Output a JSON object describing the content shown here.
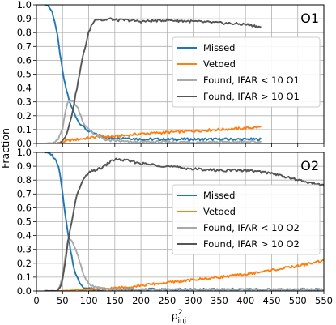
{
  "chart_data": [
    {
      "type": "line",
      "panel_label": "O1",
      "ylabel": "Fraction",
      "xlim": [
        0,
        550
      ],
      "ylim": [
        0,
        1.0
      ],
      "grid": true,
      "legend_position": "right",
      "x_ticks": [
        0,
        50,
        100,
        150,
        200,
        250,
        300,
        350,
        400,
        450,
        500,
        550
      ],
      "y_ticks": [
        0.0,
        0.1,
        0.2,
        0.3,
        0.4,
        0.5,
        0.6,
        0.7,
        0.8,
        0.9,
        1.0
      ],
      "series": [
        {
          "name": "Missed",
          "color": "#1f77b4",
          "x": [
            15,
            20,
            25,
            30,
            35,
            40,
            45,
            50,
            55,
            60,
            65,
            70,
            75,
            80,
            85,
            90,
            95,
            100,
            110,
            120,
            130,
            140,
            150,
            175,
            200,
            250,
            300,
            350,
            400,
            430
          ],
          "y": [
            1.0,
            1.0,
            0.98,
            0.95,
            0.88,
            0.78,
            0.65,
            0.52,
            0.42,
            0.35,
            0.28,
            0.24,
            0.2,
            0.16,
            0.14,
            0.12,
            0.1,
            0.09,
            0.07,
            0.06,
            0.05,
            0.04,
            0.04,
            0.04,
            0.03,
            0.03,
            0.03,
            0.03,
            0.03,
            0.03
          ]
        },
        {
          "name": "Vetoed",
          "color": "#ff7f0e",
          "x": [
            15,
            40,
            60,
            80,
            100,
            120,
            150,
            175,
            200,
            250,
            300,
            350,
            400,
            430
          ],
          "y": [
            0.0,
            0.0,
            0.02,
            0.03,
            0.04,
            0.05,
            0.05,
            0.06,
            0.07,
            0.08,
            0.09,
            0.1,
            0.11,
            0.12
          ]
        },
        {
          "name": "Found, IFAR < 10 O1",
          "color": "#a9a9a9",
          "x": [
            15,
            30,
            40,
            50,
            55,
            60,
            65,
            70,
            75,
            80,
            85,
            90,
            95,
            100,
            110,
            120,
            130,
            140,
            150,
            175,
            200,
            250,
            300,
            350,
            400,
            430
          ],
          "y": [
            0.0,
            0.0,
            0.02,
            0.1,
            0.22,
            0.3,
            0.32,
            0.3,
            0.28,
            0.25,
            0.2,
            0.15,
            0.12,
            0.1,
            0.07,
            0.05,
            0.03,
            0.02,
            0.02,
            0.01,
            0.01,
            0.01,
            0.01,
            0.01,
            0.01,
            0.01
          ]
        },
        {
          "name": "Found, IFAR > 10 O1",
          "color": "#555555",
          "x": [
            15,
            40,
            50,
            55,
            60,
            65,
            70,
            75,
            80,
            85,
            90,
            95,
            100,
            105,
            110,
            115,
            120,
            125,
            130,
            140,
            150,
            175,
            200,
            250,
            300,
            350,
            400,
            430
          ],
          "y": [
            0.0,
            0.0,
            0.02,
            0.05,
            0.1,
            0.16,
            0.25,
            0.35,
            0.45,
            0.55,
            0.65,
            0.72,
            0.8,
            0.85,
            0.88,
            0.9,
            0.9,
            0.89,
            0.89,
            0.9,
            0.89,
            0.89,
            0.88,
            0.89,
            0.88,
            0.87,
            0.86,
            0.84
          ]
        }
      ]
    },
    {
      "type": "line",
      "panel_label": "O2",
      "xlabel": "ρ²_inj",
      "ylabel": "Fraction",
      "xlim": [
        0,
        550
      ],
      "ylim": [
        0,
        1.0
      ],
      "grid": true,
      "legend_position": "right",
      "x_ticks": [
        0,
        50,
        100,
        150,
        200,
        250,
        300,
        350,
        400,
        450,
        500,
        550
      ],
      "y_ticks": [
        0.0,
        0.1,
        0.2,
        0.3,
        0.4,
        0.5,
        0.6,
        0.7,
        0.8,
        0.9,
        1.0
      ],
      "series": [
        {
          "name": "Missed",
          "color": "#1f77b4",
          "x": [
            15,
            20,
            25,
            30,
            35,
            40,
            45,
            50,
            55,
            60,
            65,
            70,
            75,
            80,
            85,
            90,
            95,
            100,
            110,
            120,
            150,
            200,
            300,
            400,
            500,
            550
          ],
          "y": [
            1.0,
            1.0,
            0.99,
            0.98,
            0.95,
            0.92,
            0.85,
            0.7,
            0.55,
            0.42,
            0.3,
            0.2,
            0.12,
            0.08,
            0.05,
            0.03,
            0.02,
            0.02,
            0.01,
            0.01,
            0.01,
            0.01,
            0.01,
            0.01,
            0.01,
            0.01
          ]
        },
        {
          "name": "Vetoed",
          "color": "#ff7f0e",
          "x": [
            15,
            50,
            100,
            150,
            200,
            250,
            300,
            350,
            400,
            450,
            500,
            550
          ],
          "y": [
            0.0,
            0.0,
            0.01,
            0.02,
            0.04,
            0.06,
            0.08,
            0.1,
            0.12,
            0.15,
            0.18,
            0.22
          ]
        },
        {
          "name": "Found, IFAR < 10 O2",
          "color": "#a9a9a9",
          "x": [
            15,
            40,
            45,
            50,
            55,
            60,
            65,
            70,
            75,
            80,
            85,
            90,
            95,
            100,
            110,
            120,
            130,
            150,
            200,
            300,
            400,
            500,
            550
          ],
          "y": [
            0.0,
            0.0,
            0.03,
            0.1,
            0.25,
            0.36,
            0.38,
            0.34,
            0.3,
            0.25,
            0.18,
            0.12,
            0.08,
            0.05,
            0.03,
            0.02,
            0.01,
            0.01,
            0.01,
            0.01,
            0.01,
            0.01,
            0.01
          ]
        },
        {
          "name": "Found, IFAR > 10 O2",
          "color": "#555555",
          "x": [
            15,
            40,
            45,
            50,
            55,
            60,
            65,
            70,
            75,
            80,
            85,
            90,
            95,
            100,
            110,
            120,
            130,
            140,
            150,
            175,
            200,
            250,
            300,
            350,
            400,
            450,
            500,
            550
          ],
          "y": [
            0.0,
            0.0,
            0.02,
            0.08,
            0.2,
            0.35,
            0.45,
            0.55,
            0.65,
            0.72,
            0.77,
            0.8,
            0.83,
            0.85,
            0.87,
            0.88,
            0.9,
            0.93,
            0.95,
            0.94,
            0.92,
            0.9,
            0.88,
            0.87,
            0.87,
            0.85,
            0.8,
            0.76
          ]
        }
      ]
    }
  ]
}
